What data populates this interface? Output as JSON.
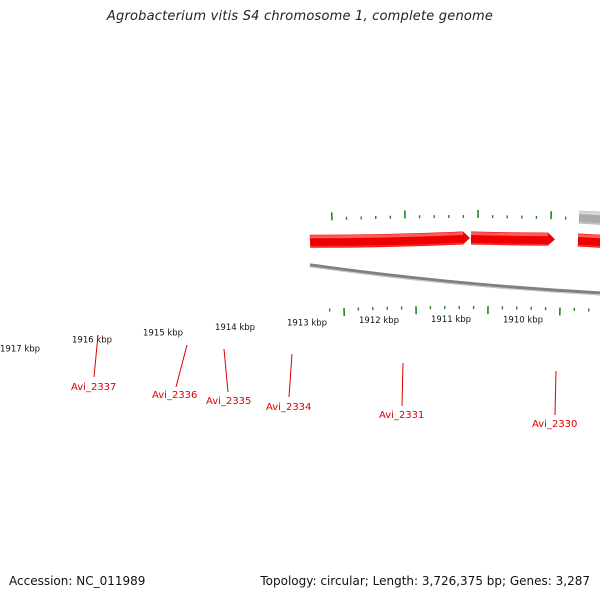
{
  "title": "Agrobacterium vitis S4 chromosome 1, complete genome",
  "footer": {
    "accession": "Accession: NC_011989",
    "summary": "Topology: circular; Length: 3,726,375 bp; Genes: 3,287"
  },
  "ruler": {
    "labels": [
      "1917 kbp",
      "1916 kbp",
      "1915 kbp",
      "1914 kbp",
      "1913 kbp",
      "1912 kbp",
      "1911 kbp",
      "1910 kbp"
    ]
  },
  "colors": {
    "forward_gene": "#ee0000",
    "reverse_gene": "#aaaaaa",
    "backbone": "#808080",
    "ticks": "#228822",
    "gene_label": "#dd0000"
  },
  "genes": [
    {
      "label": "Avi_2337",
      "strand": "forward",
      "color": "forward_gene",
      "labeled": true
    },
    {
      "label": "Avi_2336",
      "strand": "forward",
      "color": "forward_gene",
      "labeled": true
    },
    {
      "label": "Avi_2335",
      "strand": "forward",
      "color": "forward_gene",
      "labeled": true
    },
    {
      "label": "Avi_2334",
      "strand": "forward",
      "color": "forward_gene",
      "labeled": true
    },
    {
      "label": "",
      "strand": "reverse",
      "color": "reverse_gene",
      "labeled": false
    },
    {
      "label": "Avi_2331",
      "strand": "forward",
      "color": "forward_gene",
      "labeled": true
    },
    {
      "label": "Avi_2330",
      "strand": "forward",
      "color": "forward_gene",
      "labeled": true
    }
  ]
}
